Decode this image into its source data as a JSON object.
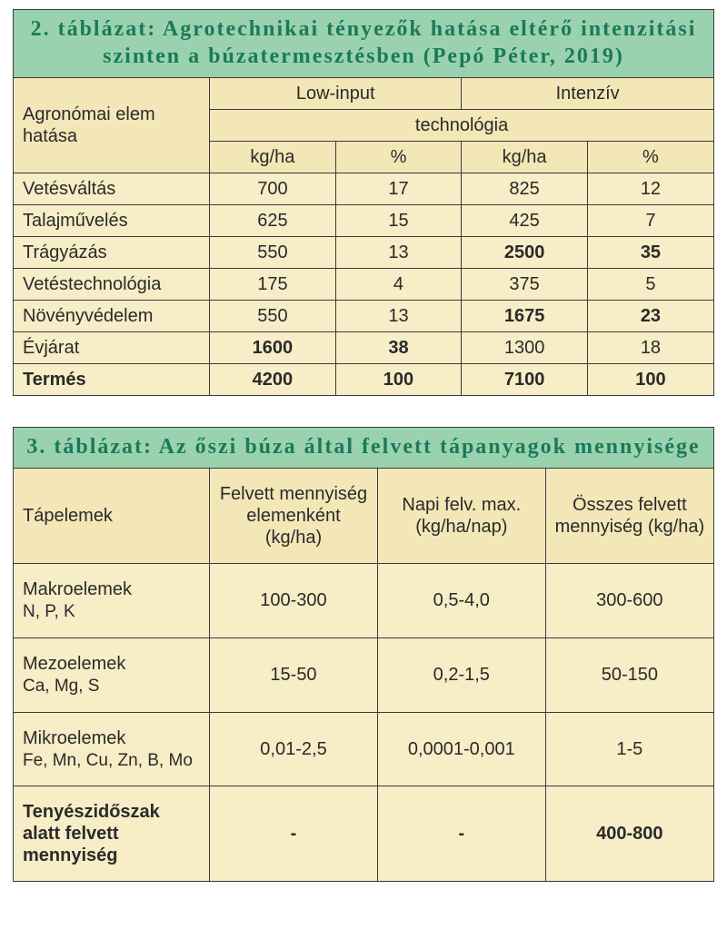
{
  "table2": {
    "title": "2. táblázat: Agrotechnikai tényezők hatása eltérő intenzitási szinten a búzatermesztésben (Pepó Péter, 2019)",
    "header": {
      "row_label": "Agronómai elem hatása",
      "low_input": "Low-input",
      "intensive": "Intenzív",
      "technology": "technológia",
      "kgha": "kg/ha",
      "pct": "%"
    },
    "rows": [
      {
        "label": "Vetésváltás",
        "li_kg": "700",
        "li_pct": "17",
        "in_kg": "825",
        "in_pct": "12",
        "bold_li": false,
        "bold_in": false
      },
      {
        "label": "Talajművelés",
        "li_kg": "625",
        "li_pct": "15",
        "in_kg": "425",
        "in_pct": "7",
        "bold_li": false,
        "bold_in": false
      },
      {
        "label": "Trágyázás",
        "li_kg": "550",
        "li_pct": "13",
        "in_kg": "2500",
        "in_pct": "35",
        "bold_li": false,
        "bold_in": true
      },
      {
        "label": "Vetéstechnológia",
        "li_kg": "175",
        "li_pct": "4",
        "in_kg": "375",
        "in_pct": "5",
        "bold_li": false,
        "bold_in": false
      },
      {
        "label": "Növényvédelem",
        "li_kg": "550",
        "li_pct": "13",
        "in_kg": "1675",
        "in_pct": "23",
        "bold_li": false,
        "bold_in": true
      },
      {
        "label": "Évjárat",
        "li_kg": "1600",
        "li_pct": "38",
        "in_kg": "1300",
        "in_pct": "18",
        "bold_li": true,
        "bold_in": false
      }
    ],
    "total": {
      "label": "Termés",
      "li_kg": "4200",
      "li_pct": "100",
      "in_kg": "7100",
      "in_pct": "100"
    }
  },
  "table3": {
    "title": "3. táblázat: Az őszi búza által felvett tápanyagok mennyisége",
    "header": {
      "elements": "Tápelemek",
      "per_element": "Felvett mennyiség elemenként (kg/ha)",
      "daily_max": "Napi felv. max. (kg/ha/nap)",
      "total": "Összes felvett mennyiség (kg/ha)"
    },
    "rows": [
      {
        "label": "Makroelemek",
        "sub": "N, P, K",
        "c1": "100-300",
        "c2": "0,5-4,0",
        "c3": "300-600"
      },
      {
        "label": "Mezoelemek",
        "sub": "Ca, Mg, S",
        "c1": "15-50",
        "c2": "0,2-1,5",
        "c3": "50-150"
      },
      {
        "label": "Mikroelemek",
        "sub": "Fe, Mn, Cu, Zn, B, Mo",
        "c1": "0,01-2,5",
        "c2": "0,0001-0,001",
        "c3": "1-5"
      }
    ],
    "total": {
      "label": "Tenyészidőszak alatt felvett mennyiség",
      "c1": "-",
      "c2": "-",
      "c3": "400-800"
    }
  }
}
